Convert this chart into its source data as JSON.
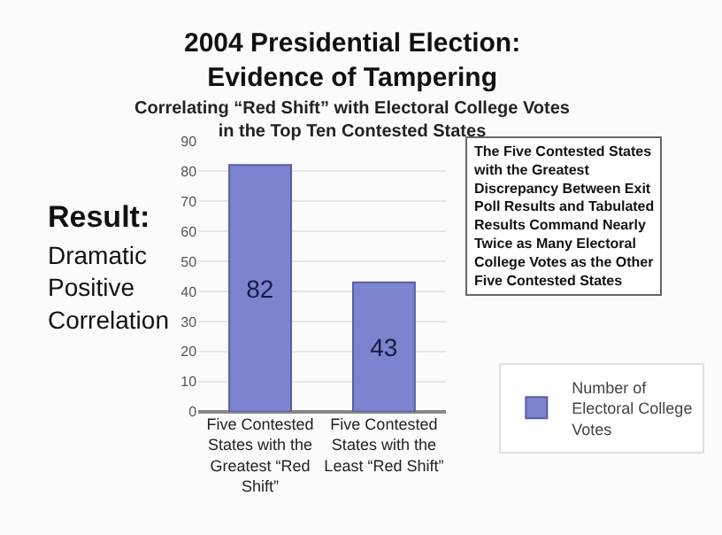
{
  "chart_data": {
    "type": "bar",
    "title": "2004 Presidential Election:\nEvidence of Tampering",
    "subtitle": "Correlating “Red Shift” with Electoral College Votes\nin the Top Ten Contested States",
    "categories": [
      "Five Contested States with the Greatest “Red Shift”",
      "Five Contested States with the Least “Red Shift”"
    ],
    "series": [
      {
        "name": "Number of Electoral College Votes",
        "color": "#7c83cf",
        "values": [
          82,
          43
        ]
      }
    ],
    "ylim": [
      0,
      90
    ],
    "yticks": [
      0,
      10,
      20,
      30,
      40,
      50,
      60,
      70,
      80,
      90
    ],
    "grid": "y",
    "legend": "bottom right",
    "data_labels": true,
    "annotations": [
      "Result:",
      "Dramatic Positive Correlation",
      "The Five Contested States with the Greatest Discrepancy Between Exit Poll Results and Tabulated Results Command Nearly Twice as Many Electoral College Votes as the Other Five Contested States"
    ]
  }
}
